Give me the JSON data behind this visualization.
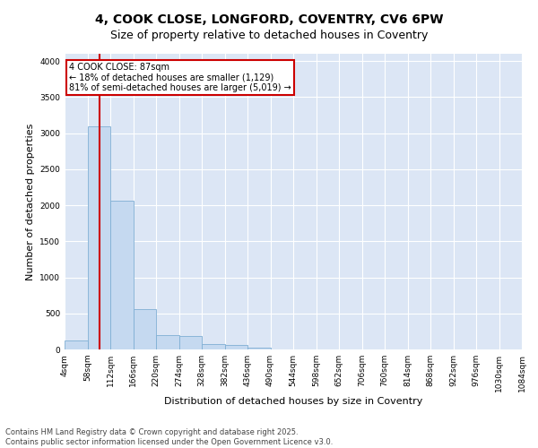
{
  "title_line1": "4, COOK CLOSE, LONGFORD, COVENTRY, CV6 6PW",
  "title_line2": "Size of property relative to detached houses in Coventry",
  "xlabel": "Distribution of detached houses by size in Coventry",
  "ylabel": "Number of detached properties",
  "bar_color": "#c5d9f0",
  "bar_edge_color": "#7fafd4",
  "vline_color": "#cc0000",
  "vline_x": 87,
  "annotation_title": "4 COOK CLOSE: 87sqm",
  "annotation_line2": "← 18% of detached houses are smaller (1,129)",
  "annotation_line3": "81% of semi-detached houses are larger (5,019) →",
  "annotation_box_color": "#cc0000",
  "annotation_fill": "#ffffff",
  "bin_edges": [
    4,
    58,
    112,
    166,
    220,
    274,
    328,
    382,
    436,
    490,
    544,
    598,
    652,
    706,
    760,
    814,
    868,
    922,
    976,
    1030,
    1084
  ],
  "bar_heights": [
    130,
    3090,
    2060,
    560,
    200,
    185,
    80,
    60,
    30,
    0,
    0,
    0,
    0,
    0,
    0,
    0,
    0,
    0,
    0,
    0
  ],
  "ylim": [
    0,
    4100
  ],
  "yticks": [
    0,
    500,
    1000,
    1500,
    2000,
    2500,
    3000,
    3500,
    4000
  ],
  "fig_bg": "#ffffff",
  "plot_bg_color": "#dce6f5",
  "footer_line1": "Contains HM Land Registry data © Crown copyright and database right 2025.",
  "footer_line2": "Contains public sector information licensed under the Open Government Licence v3.0.",
  "title_fontsize": 10,
  "subtitle_fontsize": 9,
  "tick_label_fontsize": 6.5,
  "axis_label_fontsize": 8,
  "footer_fontsize": 6
}
